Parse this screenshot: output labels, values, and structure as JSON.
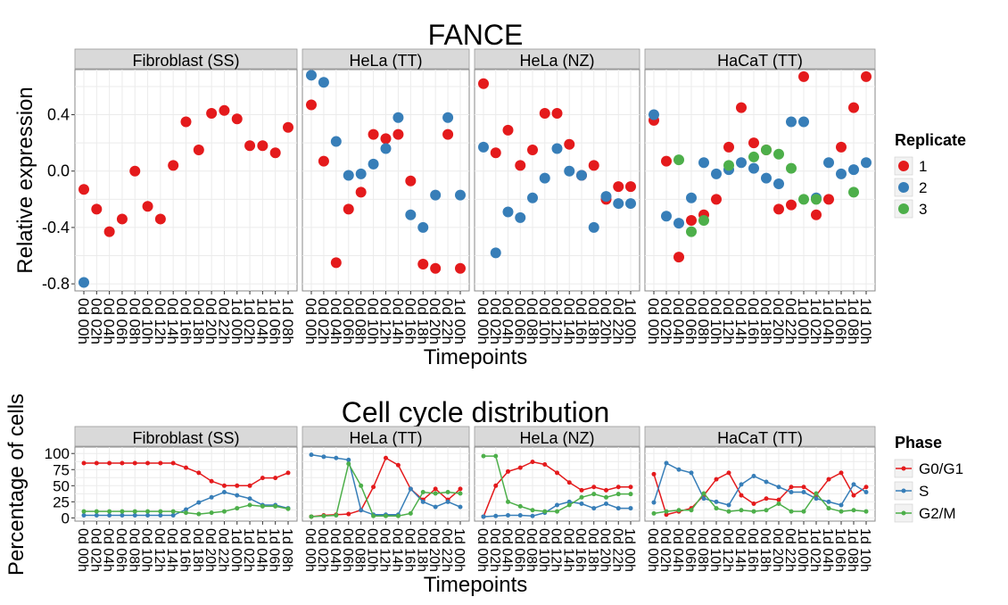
{
  "chart_data": [
    {
      "type": "scatter",
      "title": "FANCE",
      "xlabel": "Timepoints",
      "ylabel": "Relative expression",
      "ylim": [
        -0.85,
        0.72
      ],
      "y_ticks": [
        -0.8,
        -0.4,
        0.0,
        0.4
      ],
      "y_tick_labels": [
        "-0.8",
        "-0.4",
        "0.0",
        "0.4"
      ],
      "grid": true,
      "legend": {
        "title": "Replicate",
        "placement": "right",
        "entries": [
          {
            "label": "1",
            "color": "#e41a1c"
          },
          {
            "label": "2",
            "color": "#377eb8"
          },
          {
            "label": "3",
            "color": "#4daf4a"
          }
        ]
      },
      "panels": [
        {
          "name": "Fibroblast (SS)",
          "x": [
            "0d 00h",
            "0d 02h",
            "0d 04h",
            "0d 06h",
            "0d 08h",
            "0d 10h",
            "0d 12h",
            "0d 14h",
            "0d 16h",
            "0d 18h",
            "0d 20h",
            "0d 22h",
            "1d 00h",
            "1d 02h",
            "1d 04h",
            "1d 06h",
            "1d 08h"
          ],
          "series": [
            {
              "name": "1",
              "x": [
                "0d 00h",
                "0d 02h",
                "0d 04h",
                "0d 06h",
                "0d 08h",
                "0d 10h",
                "0d 12h",
                "0d 14h",
                "0d 16h",
                "0d 18h",
                "0d 20h",
                "0d 22h",
                "1d 00h",
                "1d 02h",
                "1d 04h",
                "1d 06h",
                "1d 08h"
              ],
              "values": [
                -0.13,
                -0.27,
                -0.43,
                -0.34,
                0.0,
                -0.25,
                -0.34,
                0.04,
                0.35,
                0.15,
                0.41,
                0.43,
                0.37,
                0.18,
                0.18,
                0.13,
                0.31
              ]
            },
            {
              "name": "2",
              "x": [
                "0d 00h"
              ],
              "values": [
                -0.79
              ]
            }
          ]
        },
        {
          "name": "HeLa (TT)",
          "x": [
            "0d 00h",
            "0d 02h",
            "0d 04h",
            "0d 06h",
            "0d 08h",
            "0d 10h",
            "0d 12h",
            "0d 14h",
            "0d 16h",
            "0d 18h",
            "0d 20h",
            "0d 22h",
            "1d 00h"
          ],
          "series": [
            {
              "name": "1",
              "x": [
                "0d 00h",
                "0d 02h",
                "0d 04h",
                "0d 06h",
                "0d 08h",
                "0d 10h",
                "0d 12h",
                "0d 14h",
                "0d 16h",
                "0d 18h",
                "0d 20h",
                "0d 22h",
                "1d 00h"
              ],
              "values": [
                0.47,
                0.07,
                -0.65,
                -0.27,
                -0.15,
                0.26,
                0.23,
                0.26,
                -0.07,
                -0.66,
                -0.69,
                0.26,
                -0.69
              ]
            },
            {
              "name": "2",
              "x": [
                "0d 00h",
                "0d 02h",
                "0d 04h",
                "0d 06h",
                "0d 08h",
                "0d 10h",
                "0d 12h",
                "0d 14h",
                "0d 16h",
                "0d 18h",
                "0d 20h",
                "0d 22h",
                "1d 00h"
              ],
              "values": [
                0.68,
                0.63,
                0.21,
                -0.03,
                -0.02,
                0.05,
                0.16,
                0.38,
                -0.31,
                -0.4,
                -0.17,
                0.38,
                -0.17
              ]
            }
          ]
        },
        {
          "name": "HeLa (NZ)",
          "x": [
            "0d 00h",
            "0d 02h",
            "0d 04h",
            "0d 06h",
            "0d 08h",
            "0d 10h",
            "0d 12h",
            "0d 14h",
            "0d 16h",
            "0d 18h",
            "0d 20h",
            "0d 22h",
            "1d 00h"
          ],
          "series": [
            {
              "name": "1",
              "x": [
                "0d 00h",
                "0d 02h",
                "0d 04h",
                "0d 06h",
                "0d 08h",
                "0d 10h",
                "0d 12h",
                "0d 14h",
                "0d 16h",
                "0d 18h",
                "0d 20h",
                "0d 22h",
                "1d 00h"
              ],
              "values": [
                0.62,
                0.13,
                0.29,
                0.04,
                0.15,
                0.41,
                0.41,
                0.19,
                -0.03,
                0.04,
                -0.2,
                -0.11,
                -0.11
              ]
            },
            {
              "name": "2",
              "x": [
                "0d 00h",
                "0d 02h",
                "0d 04h",
                "0d 06h",
                "0d 08h",
                "0d 10h",
                "0d 12h",
                "0d 14h",
                "0d 16h",
                "0d 18h",
                "0d 20h",
                "0d 22h",
                "1d 00h"
              ],
              "values": [
                0.17,
                -0.58,
                -0.29,
                -0.33,
                -0.19,
                -0.05,
                0.16,
                0.0,
                -0.03,
                -0.4,
                -0.18,
                -0.23,
                -0.23
              ]
            }
          ]
        },
        {
          "name": "HaCaT (TT)",
          "x": [
            "0d 00h",
            "0d 02h",
            "0d 04h",
            "0d 06h",
            "0d 08h",
            "0d 10h",
            "0d 12h",
            "0d 14h",
            "0d 16h",
            "0d 18h",
            "0d 20h",
            "0d 22h",
            "1d 00h",
            "1d 02h",
            "1d 04h",
            "1d 06h",
            "1d 08h",
            "1d 10h"
          ],
          "series": [
            {
              "name": "1",
              "x": [
                "0d 00h",
                "0d 02h",
                "0d 04h",
                "0d 06h",
                "0d 08h",
                "0d 10h",
                "0d 12h",
                "0d 14h",
                "0d 16h",
                "0d 18h",
                "0d 20h",
                "0d 22h",
                "1d 00h",
                "1d 02h",
                "1d 04h",
                "1d 06h",
                "1d 08h",
                "1d 10h"
              ],
              "values": [
                0.36,
                0.07,
                -0.61,
                -0.35,
                -0.31,
                -0.2,
                0.17,
                0.45,
                0.2,
                0.15,
                -0.27,
                -0.24,
                0.67,
                -0.31,
                -0.2,
                0.17,
                0.45,
                0.67
              ]
            },
            {
              "name": "2",
              "x": [
                "0d 00h",
                "0d 02h",
                "0d 04h",
                "0d 06h",
                "0d 08h",
                "0d 10h",
                "0d 12h",
                "0d 14h",
                "0d 16h",
                "0d 18h",
                "0d 20h",
                "0d 22h",
                "1d 00h",
                "1d 02h",
                "1d 04h",
                "1d 06h",
                "1d 08h",
                "1d 10h"
              ],
              "values": [
                0.4,
                -0.32,
                -0.37,
                -0.19,
                0.06,
                -0.02,
                0.01,
                0.06,
                0.02,
                -0.05,
                -0.09,
                0.35,
                0.35,
                -0.19,
                0.06,
                -0.02,
                0.01,
                0.06
              ]
            },
            {
              "name": "3",
              "x": [
                "0d 04h",
                "0d 06h",
                "0d 08h",
                "0d 12h",
                "0d 16h",
                "0d 18h",
                "0d 20h",
                "0d 22h",
                "1d 00h",
                "1d 02h",
                "1d 08h"
              ],
              "values": [
                0.08,
                -0.43,
                -0.35,
                0.04,
                0.1,
                0.15,
                0.12,
                0.02,
                -0.2,
                -0.2,
                -0.15
              ]
            }
          ]
        }
      ]
    },
    {
      "type": "line",
      "title": "Cell cycle distribution",
      "xlabel": "Timepoints",
      "ylabel": "Percentage of cells",
      "ylim": [
        -5,
        110
      ],
      "y_ticks": [
        0,
        25,
        50,
        75,
        100
      ],
      "y_tick_labels": [
        "0",
        "25",
        "50",
        "75",
        "100"
      ],
      "grid": true,
      "legend": {
        "title": "Phase",
        "placement": "right",
        "entries": [
          {
            "label": "G0/G1",
            "color": "#e41a1c"
          },
          {
            "label": "S",
            "color": "#377eb8"
          },
          {
            "label": "G2/M",
            "color": "#4daf4a"
          }
        ]
      },
      "panels": [
        {
          "name": "Fibroblast (SS)",
          "x": [
            "0d 00h",
            "0d 02h",
            "0d 04h",
            "0d 06h",
            "0d 08h",
            "0d 10h",
            "0d 12h",
            "0d 14h",
            "0d 16h",
            "0d 18h",
            "0d 20h",
            "0d 22h",
            "1d 00h",
            "1d 02h",
            "1d 04h",
            "1d 06h",
            "1d 08h"
          ],
          "series": [
            {
              "name": "G0/G1",
              "values": [
                85,
                85,
                85,
                85,
                85,
                85,
                85,
                85,
                78,
                70,
                57,
                50,
                50,
                50,
                62,
                62,
                70
              ]
            },
            {
              "name": "S",
              "values": [
                4,
                4,
                4,
                4,
                4,
                4,
                4,
                4,
                13,
                24,
                32,
                40,
                35,
                30,
                20,
                20,
                15
              ]
            },
            {
              "name": "G2/M",
              "values": [
                10,
                10,
                10,
                10,
                10,
                10,
                10,
                10,
                8,
                6,
                8,
                10,
                15,
                20,
                18,
                18,
                14
              ]
            }
          ]
        },
        {
          "name": "HeLa (TT)",
          "x": [
            "0d 00h",
            "0d 02h",
            "0d 04h",
            "0d 06h",
            "0d 08h",
            "0d 10h",
            "0d 12h",
            "0d 14h",
            "0d 16h",
            "0d 18h",
            "0d 20h",
            "0d 22h",
            "1d 00h"
          ],
          "series": [
            {
              "name": "G0/G1",
              "values": [
                2,
                4,
                5,
                6,
                12,
                48,
                93,
                82,
                45,
                28,
                45,
                28,
                45
              ]
            },
            {
              "name": "S",
              "values": [
                98,
                95,
                93,
                90,
                12,
                5,
                5,
                5,
                45,
                25,
                17,
                25,
                17
              ]
            },
            {
              "name": "G2/M",
              "values": [
                2,
                3,
                4,
                84,
                50,
                3,
                3,
                3,
                7,
                40,
                38,
                40,
                38
              ]
            }
          ]
        },
        {
          "name": "HeLa (NZ)",
          "x": [
            "0d 00h",
            "0d 02h",
            "0d 04h",
            "0d 06h",
            "0d 08h",
            "0d 10h",
            "0d 12h",
            "0d 14h",
            "0d 16h",
            "0d 18h",
            "0d 20h",
            "0d 22h",
            "1d 00h"
          ],
          "series": [
            {
              "name": "G0/G1",
              "values": [
                2,
                50,
                72,
                78,
                87,
                83,
                70,
                55,
                43,
                48,
                43,
                48,
                48
              ]
            },
            {
              "name": "S",
              "values": [
                2,
                3,
                4,
                4,
                3,
                8,
                20,
                25,
                22,
                15,
                22,
                15,
                15
              ]
            },
            {
              "name": "G2/M",
              "values": [
                96,
                96,
                25,
                18,
                12,
                10,
                10,
                20,
                32,
                37,
                32,
                37,
                37
              ]
            }
          ]
        },
        {
          "name": "HaCaT (TT)",
          "x": [
            "0d 00h",
            "0d 02h",
            "0d 04h",
            "0d 06h",
            "0d 08h",
            "0d 10h",
            "0d 12h",
            "0d 14h",
            "0d 16h",
            "0d 18h",
            "0d 20h",
            "0d 22h",
            "1d 00h",
            "1d 02h",
            "1d 04h",
            "1d 06h",
            "1d 08h",
            "1d 10h"
          ],
          "series": [
            {
              "name": "G0/G1",
              "values": [
                68,
                5,
                10,
                15,
                35,
                60,
                70,
                35,
                22,
                30,
                28,
                48,
                48,
                35,
                60,
                70,
                35,
                48
              ]
            },
            {
              "name": "S",
              "values": [
                24,
                85,
                75,
                70,
                30,
                25,
                20,
                52,
                65,
                56,
                48,
                40,
                40,
                30,
                25,
                20,
                52,
                40
              ]
            },
            {
              "name": "G2/M",
              "values": [
                7,
                10,
                12,
                12,
                38,
                15,
                10,
                12,
                10,
                12,
                22,
                10,
                10,
                38,
                15,
                10,
                12,
                10
              ]
            }
          ]
        }
      ]
    }
  ]
}
